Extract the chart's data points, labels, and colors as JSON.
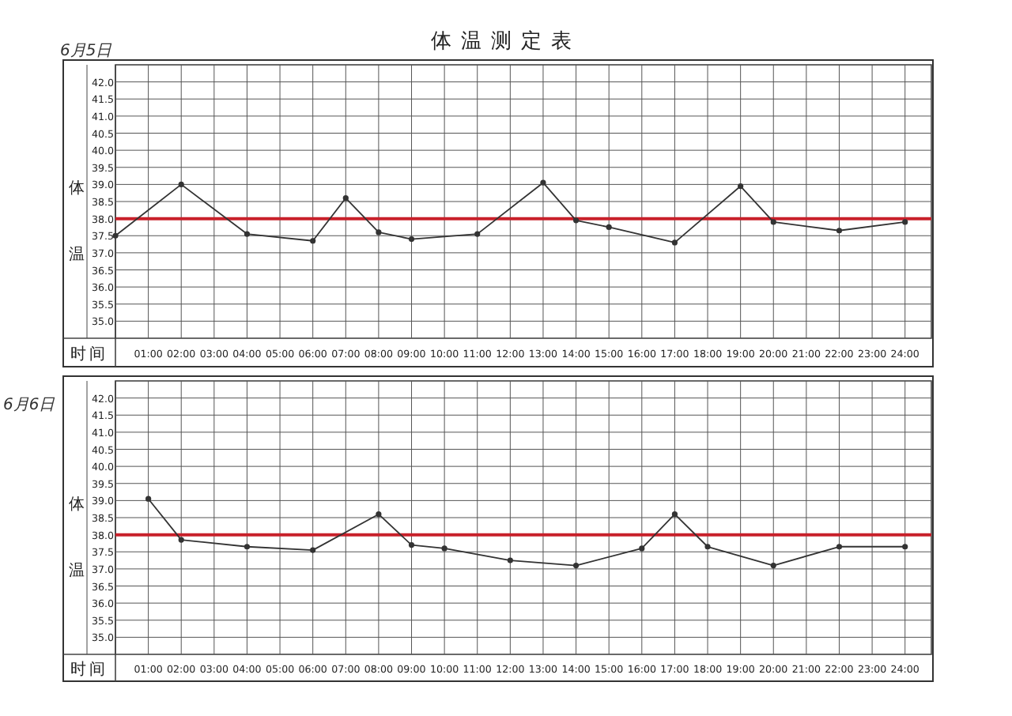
{
  "chart_data": [
    {
      "type": "line",
      "title": "体温测定表",
      "subtitle": "6月5日",
      "ylabel": "体温",
      "xlabel": "时间",
      "x": [
        0,
        2,
        4,
        6,
        7,
        8,
        9,
        11,
        13,
        14,
        15,
        17,
        19,
        20,
        22,
        24
      ],
      "series": [
        {
          "color": "#333333",
          "values": [
            37.5,
            39.0,
            37.55,
            37.35,
            38.6,
            37.6,
            37.4,
            37.55,
            39.05,
            37.95,
            37.75,
            37.3,
            38.95,
            37.9,
            37.65,
            37.9
          ]
        }
      ],
      "xlim": [
        0,
        24.8
      ],
      "ylim": [
        34.5,
        42.5
      ],
      "xticks": [
        {
          "value": 1,
          "label": "01:00"
        },
        {
          "value": 2,
          "label": "02:00"
        },
        {
          "value": 3,
          "label": "03:00"
        },
        {
          "value": 4,
          "label": "04:00"
        },
        {
          "value": 5,
          "label": "05:00"
        },
        {
          "value": 6,
          "label": "06:00"
        },
        {
          "value": 7,
          "label": "07:00"
        },
        {
          "value": 8,
          "label": "08:00"
        },
        {
          "value": 9,
          "label": "09:00"
        },
        {
          "value": 10,
          "label": "10:00"
        },
        {
          "value": 11,
          "label": "11:00"
        },
        {
          "value": 12,
          "label": "12:00"
        },
        {
          "value": 13,
          "label": "13:00"
        },
        {
          "value": 14,
          "label": "14:00"
        },
        {
          "value": 15,
          "label": "15:00"
        },
        {
          "value": 16,
          "label": "16:00"
        },
        {
          "value": 17,
          "label": "17:00"
        },
        {
          "value": 18,
          "label": "18:00"
        },
        {
          "value": 19,
          "label": "19:00"
        },
        {
          "value": 20,
          "label": "20:00"
        },
        {
          "value": 21,
          "label": "21:00"
        },
        {
          "value": 22,
          "label": "22:00"
        },
        {
          "value": 23,
          "label": "23:00"
        },
        {
          "value": 24,
          "label": "24:00"
        }
      ],
      "yticks": [
        {
          "value": 35,
          "label": "35.0"
        },
        35.5,
        {
          "value": 36,
          "label": "36.0"
        },
        36.5,
        {
          "value": 37,
          "label": "37.0"
        },
        37.5,
        {
          "value": 38,
          "label": "38.0"
        },
        38.5,
        {
          "value": 39,
          "label": "39.0"
        },
        39.5,
        {
          "value": 40,
          "label": "40.0"
        },
        40.5,
        {
          "value": 41,
          "label": "41.0"
        },
        41.5,
        {
          "value": 42,
          "label": "42.0"
        }
      ],
      "ref_lines": [
        {
          "axis": "y",
          "value": 38,
          "color": "#c8202a"
        }
      ],
      "grid": true,
      "marker": "circle",
      "line_style": "solid"
    },
    {
      "type": "line",
      "subtitle": "6月6日",
      "ylabel": "体温",
      "xlabel": "时间",
      "x": [
        1,
        2,
        4,
        6,
        8,
        9,
        10,
        12,
        14,
        16,
        17,
        18,
        20,
        22,
        24
      ],
      "series": [
        {
          "color": "#333333",
          "values": [
            39.05,
            37.85,
            37.65,
            37.55,
            38.6,
            37.7,
            37.6,
            37.25,
            37.1,
            37.6,
            38.6,
            37.65,
            37.1,
            37.65,
            37.65
          ]
        }
      ],
      "xlim": [
        0,
        24.8
      ],
      "ylim": [
        34.5,
        42.5
      ],
      "xticks": [
        {
          "value": 1,
          "label": "01:00"
        },
        {
          "value": 2,
          "label": "02:00"
        },
        {
          "value": 3,
          "label": "03:00"
        },
        {
          "value": 4,
          "label": "04:00"
        },
        {
          "value": 5,
          "label": "05:00"
        },
        {
          "value": 6,
          "label": "06:00"
        },
        {
          "value": 7,
          "label": "07:00"
        },
        {
          "value": 8,
          "label": "08:00"
        },
        {
          "value": 9,
          "label": "09:00"
        },
        {
          "value": 10,
          "label": "10:00"
        },
        {
          "value": 11,
          "label": "11:00"
        },
        {
          "value": 12,
          "label": "12:00"
        },
        {
          "value": 13,
          "label": "13:00"
        },
        {
          "value": 14,
          "label": "14:00"
        },
        {
          "value": 15,
          "label": "15:00"
        },
        {
          "value": 16,
          "label": "16:00"
        },
        {
          "value": 17,
          "label": "17:00"
        },
        {
          "value": 18,
          "label": "18:00"
        },
        {
          "value": 19,
          "label": "19:00"
        },
        {
          "value": 20,
          "label": "20:00"
        },
        {
          "value": 21,
          "label": "21:00"
        },
        {
          "value": 22,
          "label": "22:00"
        },
        {
          "value": 23,
          "label": "23:00"
        },
        {
          "value": 24,
          "label": "24:00"
        }
      ],
      "yticks": [
        {
          "value": 35,
          "label": "35.0"
        },
        35.5,
        {
          "value": 36,
          "label": "36.0"
        },
        36.5,
        {
          "value": 37,
          "label": "37.0"
        },
        37.5,
        {
          "value": 38,
          "label": "38.0"
        },
        38.5,
        {
          "value": 39,
          "label": "39.0"
        },
        39.5,
        {
          "value": 40,
          "label": "40.0"
        },
        40.5,
        {
          "value": 41,
          "label": "41.0"
        },
        41.5,
        {
          "value": 42,
          "label": "42.0"
        }
      ],
      "ref_lines": [
        {
          "axis": "y",
          "value": 38,
          "color": "#c8202a"
        }
      ],
      "grid": true,
      "marker": "circle",
      "line_style": "solid"
    }
  ]
}
